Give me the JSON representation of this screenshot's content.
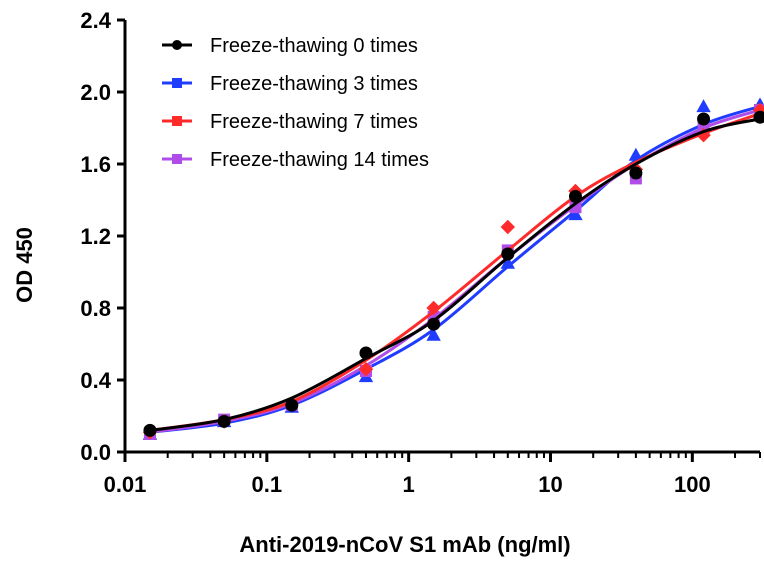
{
  "chart_data": {
    "type": "line",
    "title": "",
    "xlabel": "Anti-2019-nCoV S1 mAb (ng/ml)",
    "ylabel": "OD 450",
    "xscale": "log",
    "xlim": [
      0.01,
      300
    ],
    "ylim": [
      0.0,
      2.4
    ],
    "x_ticks": [
      0.01,
      0.1,
      1,
      10,
      100
    ],
    "x_tick_labels": [
      "0.01",
      "0.1",
      "1",
      "10",
      "100"
    ],
    "y_ticks": [
      0.0,
      0.4,
      0.8,
      1.2,
      1.6,
      2.0,
      2.4
    ],
    "y_tick_labels": [
      "0.0",
      "0.4",
      "0.8",
      "1.2",
      "1.6",
      "2.0",
      "2.4"
    ],
    "grid": false,
    "legend_position": "top-left",
    "x": [
      0.015,
      0.05,
      0.15,
      0.5,
      1.5,
      5,
      15,
      40,
      120,
      300
    ],
    "series": [
      {
        "name": "Freeze-thawing 0 times",
        "color": "#000000",
        "marker": "circle",
        "values": [
          0.12,
          0.17,
          0.26,
          0.55,
          0.71,
          1.1,
          1.42,
          1.55,
          1.85,
          1.86
        ],
        "fit": [
          0.12,
          0.18,
          0.3,
          0.52,
          0.73,
          1.08,
          1.38,
          1.6,
          1.78,
          1.85
        ]
      },
      {
        "name": "Freeze-thawing 3 times",
        "color": "#1f3cff",
        "marker": "triangle",
        "values": [
          0.1,
          0.17,
          0.25,
          0.42,
          0.65,
          1.05,
          1.32,
          1.65,
          1.92,
          1.93
        ],
        "fit": [
          0.11,
          0.16,
          0.26,
          0.46,
          0.68,
          1.03,
          1.34,
          1.62,
          1.82,
          1.92
        ]
      },
      {
        "name": "Freeze-thawing 7 times",
        "color": "#ff2a2a",
        "marker": "diamond",
        "values": [
          0.11,
          0.17,
          0.27,
          0.46,
          0.8,
          1.25,
          1.45,
          1.57,
          1.76,
          1.9
        ],
        "fit": [
          0.12,
          0.18,
          0.28,
          0.51,
          0.78,
          1.12,
          1.42,
          1.61,
          1.77,
          1.88
        ]
      },
      {
        "name": "Freeze-thawing 14 times",
        "color": "#b04de8",
        "marker": "square",
        "values": [
          0.1,
          0.18,
          0.26,
          0.45,
          0.75,
          1.12,
          1.36,
          1.52,
          1.8,
          1.9
        ],
        "fit": [
          0.11,
          0.17,
          0.27,
          0.48,
          0.74,
          1.08,
          1.37,
          1.6,
          1.8,
          1.9
        ]
      }
    ]
  }
}
